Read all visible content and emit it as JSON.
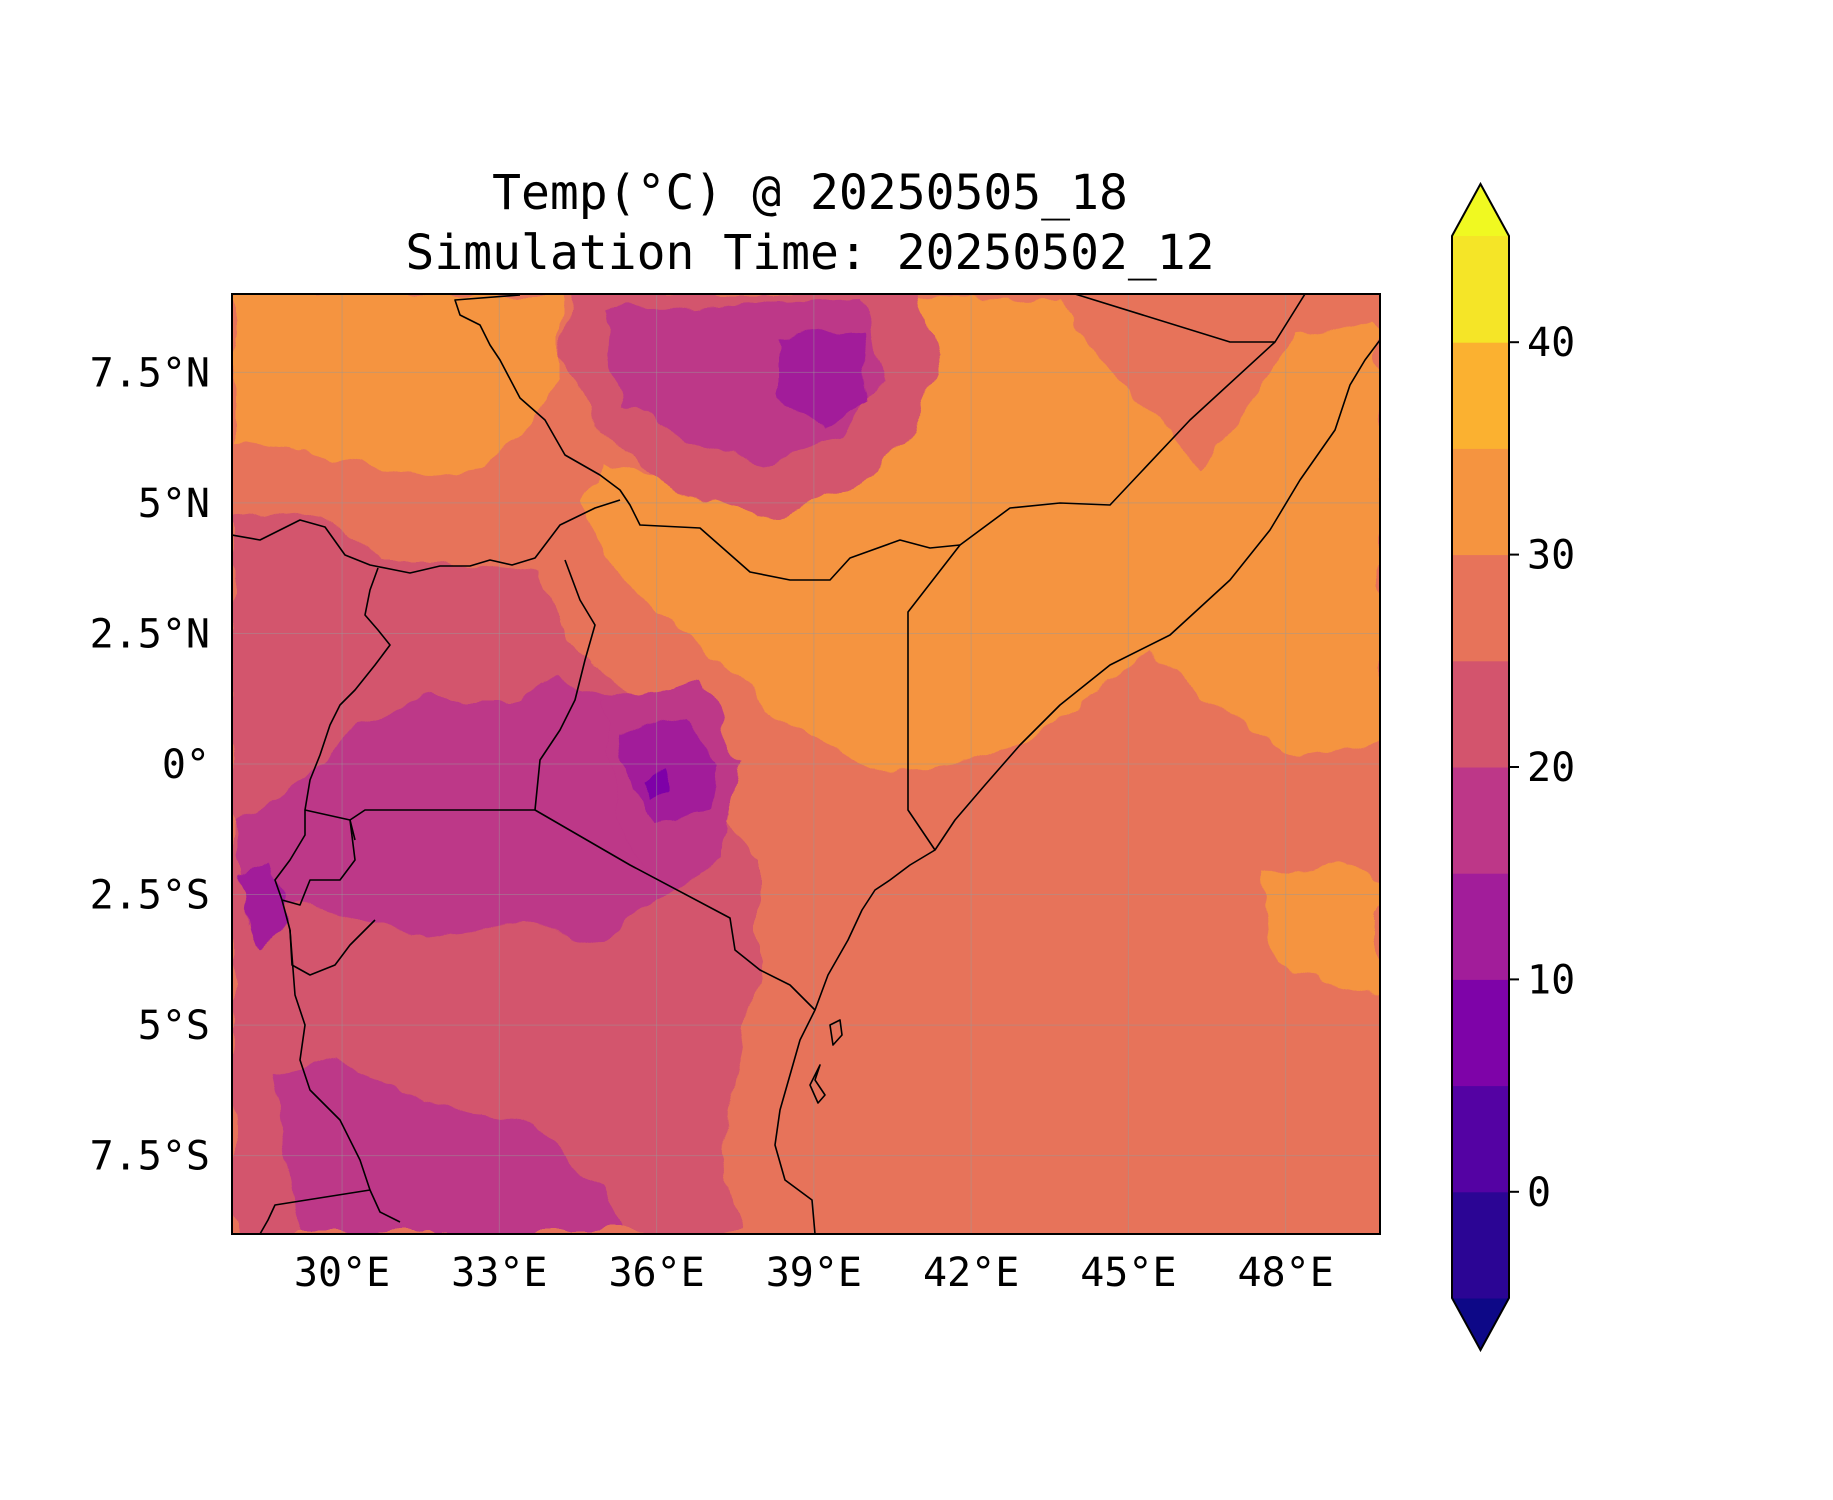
{
  "title": {
    "line1": "Temp(°C) @ 20250505_18",
    "line2": "Simulation Time: 20250502_12"
  },
  "map": {
    "region": "East Africa",
    "lon_range": [
      27.9,
      49.8
    ],
    "lat_range": [
      -9.0,
      9.0
    ],
    "x_ticks": [
      {
        "value": 30,
        "label": "30°E"
      },
      {
        "value": 33,
        "label": "33°E"
      },
      {
        "value": 36,
        "label": "36°E"
      },
      {
        "value": 39,
        "label": "39°E"
      },
      {
        "value": 42,
        "label": "42°E"
      },
      {
        "value": 45,
        "label": "45°E"
      },
      {
        "value": 48,
        "label": "48°E"
      }
    ],
    "y_ticks": [
      {
        "value": 7.5,
        "label": "7.5°N"
      },
      {
        "value": 5,
        "label": "5°N"
      },
      {
        "value": 2.5,
        "label": "2.5°N"
      },
      {
        "value": 0,
        "label": "0°"
      },
      {
        "value": -2.5,
        "label": "2.5°S"
      },
      {
        "value": -5,
        "label": "5°S"
      },
      {
        "value": -7.5,
        "label": "7.5°S"
      }
    ],
    "gridlines": true,
    "colors": {
      "t30_35": "#f59440",
      "t25_30": "#e7735a",
      "t20_25": "#d3546d",
      "t15_20": "#bd3788",
      "t10_15": "#a21d9a",
      "t5_10": "#7e03a8",
      "t35_40": "#fbb130"
    }
  },
  "colorbar": {
    "levels": [
      -5,
      0,
      5,
      10,
      15,
      20,
      25,
      30,
      35,
      40,
      45
    ],
    "colors": [
      "#2b0594",
      "#5402a3",
      "#7e03a8",
      "#a21d9a",
      "#bd3788",
      "#d3546d",
      "#e7735a",
      "#f59440",
      "#fbb130",
      "#f5e527"
    ],
    "under_color": "#0d0887",
    "over_color": "#f0f921",
    "extend": "both",
    "ticks": [
      {
        "value": 0,
        "label": "0"
      },
      {
        "value": 10,
        "label": "10"
      },
      {
        "value": 20,
        "label": "20"
      },
      {
        "value": 30,
        "label": "30"
      },
      {
        "value": 40,
        "label": "40"
      }
    ]
  }
}
